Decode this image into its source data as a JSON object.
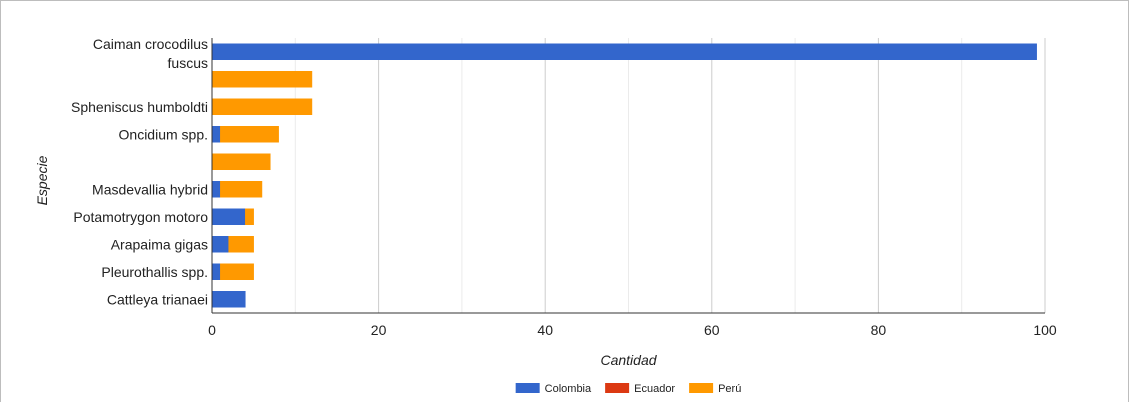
{
  "chart_data": {
    "type": "bar",
    "orientation": "horizontal",
    "stacked": true,
    "categories": [
      [
        "Caiman crocodilus",
        "fuscus"
      ],
      [],
      [
        "Spheniscus humboldti"
      ],
      [
        "Oncidium spp."
      ],
      [],
      [
        "Masdevallia hybrid"
      ],
      [
        "Potamotrygon motoro"
      ],
      [
        "Arapaima gigas"
      ],
      [
        "Pleurothallis spp."
      ],
      [
        "Cattleya trianaei"
      ]
    ],
    "series": [
      {
        "name": "Colombia",
        "color": "#3366cc",
        "values": [
          99,
          0,
          0,
          1,
          0,
          1,
          4,
          2,
          1,
          4
        ]
      },
      {
        "name": "Ecuador",
        "color": "#dc3912",
        "values": [
          0,
          0,
          0,
          0,
          0,
          0,
          0,
          0,
          0,
          0
        ]
      },
      {
        "name": "Perú",
        "color": "#ff9900",
        "values": [
          0,
          12,
          12,
          7,
          7,
          5,
          1,
          3,
          4,
          0
        ]
      }
    ],
    "xlabel": "Cantidad",
    "ylabel": "Especie",
    "xlim": [
      0,
      100
    ],
    "xticks": [
      "0",
      "20",
      "40",
      "60",
      "80",
      "100"
    ],
    "grid": true,
    "legend_position": "bottom"
  }
}
